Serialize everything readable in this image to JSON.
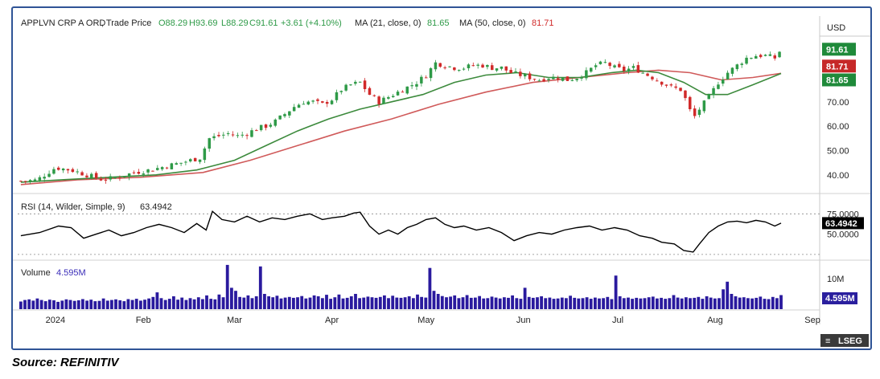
{
  "chart_data": [
    {
      "type": "candlestick",
      "header": {
        "symbol": "APPLVN CRP A ORD",
        "price_type": "Trade Price",
        "open": "O88.29",
        "high": "H93.69",
        "low": "L88.29",
        "close": "C91.61",
        "change": "+3.61 (+4.10%)",
        "ma21_label": "MA (21, close, 0)",
        "ma21_value": "81.65",
        "ma50_label": "MA (50, close, 0)",
        "ma50_value": "81.71"
      },
      "currency": "USD",
      "ylim": [
        34,
        96
      ],
      "y_ticks": [
        "40.00",
        "50.00",
        "60.00",
        "70.00"
      ],
      "price_badges": {
        "close": "91.61",
        "ma50": "81.71",
        "ma21": "81.65"
      },
      "x_axis_labels": [
        "2024",
        "Feb",
        "Mar",
        "Apr",
        "May",
        "Jun",
        "Jul",
        "Aug",
        "Sep"
      ],
      "x_axis_label_days": [
        3,
        31,
        60,
        91,
        121,
        152,
        182,
        213,
        244
      ],
      "day_range": [
        -9,
        245
      ],
      "close_keypoints": [
        [
          -8,
          37.5
        ],
        [
          -3,
          37.8
        ],
        [
          3,
          43
        ],
        [
          8,
          42
        ],
        [
          13,
          40
        ],
        [
          18,
          38
        ],
        [
          23,
          39
        ],
        [
          28,
          41
        ],
        [
          33,
          42
        ],
        [
          38,
          43.5
        ],
        [
          43,
          45
        ],
        [
          46,
          46
        ],
        [
          49,
          47
        ],
        [
          52,
          55
        ],
        [
          55,
          56
        ],
        [
          58,
          57
        ],
        [
          61,
          56
        ],
        [
          64,
          57
        ],
        [
          67,
          59
        ],
        [
          70,
          60
        ],
        [
          73,
          62
        ],
        [
          76,
          65
        ],
        [
          79,
          68
        ],
        [
          82,
          70
        ],
        [
          85,
          70
        ],
        [
          88,
          69
        ],
        [
          91,
          71
        ],
        [
          94,
          75
        ],
        [
          97,
          77
        ],
        [
          100,
          78
        ],
        [
          103,
          73
        ],
        [
          106,
          70
        ],
        [
          109,
          72
        ],
        [
          112,
          74
        ],
        [
          115,
          76
        ],
        [
          118,
          78
        ],
        [
          121,
          81
        ],
        [
          124,
          86
        ],
        [
          127,
          85
        ],
        [
          130,
          84
        ],
        [
          133,
          84
        ],
        [
          136,
          85
        ],
        [
          139,
          85
        ],
        [
          142,
          84
        ],
        [
          145,
          84
        ],
        [
          148,
          82
        ],
        [
          151,
          81
        ],
        [
          154,
          80
        ],
        [
          157,
          79
        ],
        [
          160,
          80
        ],
        [
          163,
          80
        ],
        [
          166,
          79
        ],
        [
          169,
          80
        ],
        [
          172,
          82
        ],
        [
          175,
          85
        ],
        [
          178,
          86
        ],
        [
          181,
          84
        ],
        [
          184,
          83
        ],
        [
          187,
          84
        ],
        [
          190,
          82
        ],
        [
          193,
          80
        ],
        [
          196,
          78
        ],
        [
          199,
          76
        ],
        [
          202,
          75
        ],
        [
          204,
          70
        ],
        [
          206,
          63
        ],
        [
          208,
          67
        ],
        [
          211,
          72
        ],
        [
          214,
          78
        ],
        [
          217,
          82
        ],
        [
          220,
          85
        ],
        [
          223,
          88
        ],
        [
          226,
          89
        ],
        [
          229,
          89
        ],
        [
          232,
          88
        ],
        [
          234,
          91.6
        ]
      ],
      "ma21_keypoints": [
        [
          -8,
          37
        ],
        [
          5,
          38
        ],
        [
          20,
          39
        ],
        [
          35,
          40
        ],
        [
          48,
          42
        ],
        [
          60,
          46
        ],
        [
          70,
          52
        ],
        [
          80,
          58
        ],
        [
          90,
          63
        ],
        [
          100,
          67
        ],
        [
          110,
          70
        ],
        [
          120,
          73
        ],
        [
          130,
          78
        ],
        [
          140,
          81
        ],
        [
          150,
          82
        ],
        [
          160,
          80
        ],
        [
          170,
          80
        ],
        [
          180,
          82
        ],
        [
          188,
          83
        ],
        [
          195,
          82
        ],
        [
          203,
          78
        ],
        [
          210,
          73
        ],
        [
          217,
          73
        ],
        [
          225,
          77
        ],
        [
          234,
          81.65
        ]
      ],
      "ma50_keypoints": [
        [
          -8,
          36
        ],
        [
          10,
          38
        ],
        [
          30,
          39
        ],
        [
          50,
          41
        ],
        [
          65,
          46
        ],
        [
          80,
          52
        ],
        [
          95,
          58
        ],
        [
          110,
          63
        ],
        [
          125,
          69
        ],
        [
          140,
          74
        ],
        [
          155,
          78
        ],
        [
          170,
          80
        ],
        [
          185,
          82
        ],
        [
          195,
          83
        ],
        [
          205,
          82
        ],
        [
          215,
          79
        ],
        [
          225,
          80
        ],
        [
          234,
          81.71
        ]
      ],
      "candle_step_days": 1.5,
      "bull_color": "#2e9a47",
      "bear_color": "#d12a2a",
      "ma21_color": "#3c8a3c",
      "ma50_color": "#d05a5a"
    },
    {
      "type": "line",
      "header": {
        "label": "RSI (14, Wilder, Simple, 9)",
        "value": "63.4942"
      },
      "ylim": [
        20,
        95
      ],
      "y_ticks": [
        "75.0000",
        "50.0000"
      ],
      "current_badge": "63.4942",
      "reference_lines": [
        75,
        25
      ],
      "keypoints": [
        [
          -8,
          48
        ],
        [
          -2,
          52
        ],
        [
          4,
          60
        ],
        [
          8,
          58
        ],
        [
          12,
          45
        ],
        [
          16,
          50
        ],
        [
          20,
          55
        ],
        [
          24,
          48
        ],
        [
          28,
          52
        ],
        [
          32,
          58
        ],
        [
          36,
          62
        ],
        [
          40,
          58
        ],
        [
          44,
          52
        ],
        [
          48,
          63
        ],
        [
          51,
          55
        ],
        [
          53,
          78
        ],
        [
          56,
          68
        ],
        [
          60,
          65
        ],
        [
          64,
          72
        ],
        [
          68,
          65
        ],
        [
          72,
          70
        ],
        [
          76,
          68
        ],
        [
          80,
          72
        ],
        [
          84,
          75
        ],
        [
          88,
          68
        ],
        [
          91,
          70
        ],
        [
          95,
          72
        ],
        [
          98,
          76
        ],
        [
          100,
          77
        ],
        [
          103,
          60
        ],
        [
          106,
          50
        ],
        [
          109,
          55
        ],
        [
          112,
          50
        ],
        [
          115,
          58
        ],
        [
          118,
          62
        ],
        [
          121,
          68
        ],
        [
          124,
          70
        ],
        [
          127,
          62
        ],
        [
          130,
          58
        ],
        [
          133,
          60
        ],
        [
          137,
          55
        ],
        [
          141,
          58
        ],
        [
          145,
          52
        ],
        [
          149,
          42
        ],
        [
          153,
          48
        ],
        [
          157,
          52
        ],
        [
          161,
          50
        ],
        [
          165,
          55
        ],
        [
          169,
          58
        ],
        [
          173,
          60
        ],
        [
          177,
          55
        ],
        [
          181,
          58
        ],
        [
          185,
          55
        ],
        [
          189,
          48
        ],
        [
          193,
          45
        ],
        [
          196,
          40
        ],
        [
          200,
          38
        ],
        [
          203,
          30
        ],
        [
          206,
          28
        ],
        [
          208,
          38
        ],
        [
          211,
          52
        ],
        [
          214,
          60
        ],
        [
          217,
          65
        ],
        [
          220,
          66
        ],
        [
          223,
          64
        ],
        [
          226,
          67
        ],
        [
          229,
          65
        ],
        [
          232,
          60
        ],
        [
          234,
          63.49
        ]
      ],
      "color": "#000000"
    },
    {
      "type": "bar",
      "header": {
        "label": "Volume",
        "value": "4.595M"
      },
      "ylim": [
        0,
        15
      ],
      "y_ticks": [
        "10M"
      ],
      "current_badge": "4.595M",
      "values_millions": [
        2.5,
        3.0,
        3.2,
        2.8,
        3.5,
        3.0,
        2.6,
        3.1,
        2.9,
        2.4,
        2.8,
        3.2,
        3.0,
        2.7,
        2.9,
        3.3,
        2.8,
        3.1,
        2.6,
        2.7,
        3.5,
        2.8,
        3.0,
        3.2,
        2.9,
        2.6,
        3.3,
        3.0,
        3.4,
        2.8,
        3.1,
        3.5,
        4.0,
        5.5,
        3.6,
        3.0,
        3.4,
        4.2,
        3.1,
        3.8,
        3.0,
        3.6,
        3.2,
        3.9,
        3.3,
        4.5,
        3.4,
        3.2,
        4.8,
        3.9,
        14.5,
        7.0,
        6.0,
        4.0,
        3.8,
        4.5,
        3.6,
        4.2,
        14.0,
        5.0,
        4.2,
        3.9,
        4.4,
        3.5,
        3.8,
        4.0,
        3.7,
        3.9,
        4.3,
        3.5,
        3.8,
        4.5,
        4.2,
        3.6,
        4.7,
        3.4,
        3.9,
        4.8,
        3.5,
        3.7,
        4.2,
        5.0,
        3.6,
        3.8,
        4.1,
        3.9,
        3.7,
        4.0,
        4.5,
        3.6,
        4.4,
        3.8,
        3.7,
        3.9,
        4.2,
        3.6,
        4.8,
        4.0,
        3.8,
        13.5,
        6.0,
        5.0,
        4.3,
        3.9,
        4.1,
        4.5,
        3.6,
        3.9,
        4.6,
        3.7,
        3.8,
        4.3,
        3.5,
        3.6,
        4.1,
        3.8,
        3.5,
        3.9,
        3.7,
        4.5,
        3.6,
        3.4,
        7.0,
        4.0,
        3.7,
        3.9,
        4.2,
        3.6,
        3.8,
        3.4,
        3.5,
        3.8,
        3.6,
        4.4,
        3.7,
        3.5,
        3.6,
        3.9,
        3.4,
        3.8,
        3.5,
        3.6,
        4.0,
        3.3,
        11.0,
        4.2,
        3.6,
        3.8,
        3.4,
        3.7,
        3.5,
        3.6,
        3.9,
        4.1,
        3.5,
        3.7,
        3.4,
        3.6,
        4.6,
        3.8,
        3.5,
        3.9,
        3.6,
        3.7,
        4.0,
        3.4,
        4.2,
        3.8,
        3.5,
        3.6,
        6.5,
        9.0,
        5.0,
        4.2,
        3.8,
        3.9,
        3.6,
        3.5,
        3.7,
        4.1,
        3.4,
        3.3,
        4.0,
        3.6,
        4.595
      ]
    }
  ],
  "branding": {
    "logo_text": "LSEG",
    "mark_glyph": "≡"
  },
  "source_text": "Source: REFINITIV"
}
